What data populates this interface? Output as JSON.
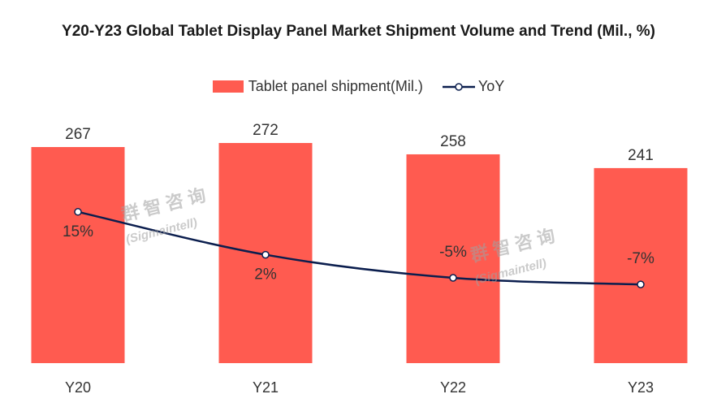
{
  "title": "Y20-Y23 Global Tablet Display Panel Market Shipment Volume and Trend (Mil., %)",
  "legend": {
    "bar_label": "Tablet panel shipment(Mil.)",
    "line_label": "YoY"
  },
  "watermark": {
    "cn": "群智咨询",
    "en": "(Sigmaintell)"
  },
  "colors": {
    "bar": "#FF5B50",
    "line": "#0B1E4E",
    "marker_fill": "#ffffff"
  },
  "chart_data": {
    "type": "bar",
    "categories": [
      "Y20",
      "Y21",
      "Y22",
      "Y23"
    ],
    "series": [
      {
        "name": "Tablet panel shipment(Mil.)",
        "type": "bar",
        "values": [
          267,
          272,
          258,
          241
        ],
        "labels": [
          "267",
          "272",
          "258",
          "241"
        ]
      },
      {
        "name": "YoY",
        "type": "line",
        "values": [
          15,
          2,
          -5,
          -7
        ],
        "labels": [
          "15%",
          "2%",
          "-5%",
          "-7%"
        ]
      }
    ],
    "legend_position": "top",
    "grid": false
  }
}
